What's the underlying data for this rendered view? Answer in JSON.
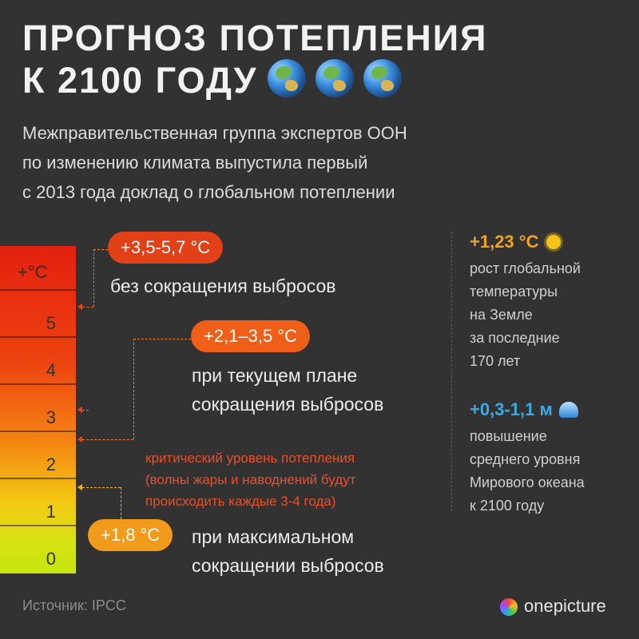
{
  "header": {
    "title_line1": "ПРОГНОЗ ПОТЕПЛЕНИЯ",
    "title_line2": "К 2100 ГОДУ",
    "subtitle_line1": "Межправительственная группа экспертов ООН",
    "subtitle_line2": "по изменению климата выпустила первый",
    "subtitle_line3": "с 2013 года доклад о глобальном потеплении"
  },
  "scale": {
    "unit": "+°C",
    "ticks": [
      "5",
      "4",
      "3",
      "2",
      "1",
      "0"
    ]
  },
  "scenarios": [
    {
      "value": "+3,5-5,7 °C",
      "label_line1": "без сокращения выбросов",
      "label_line2": "",
      "color": "#e24118"
    },
    {
      "value": "+2,1–3,5 °C",
      "label_line1": "при текущем плане",
      "label_line2": "сокращения выбросов",
      "color": "#ef5f18"
    },
    {
      "value": "+1,8 °C",
      "label_line1": "при максимальном",
      "label_line2": "сокращении выбросов",
      "color": "#f29a1a"
    }
  ],
  "critical": {
    "line1": "критический уровень потепления",
    "line2": "(волны жары и наводнений будут",
    "line3": "происходить каждые 3-4 года)"
  },
  "stats": [
    {
      "value": "+1,23 °C",
      "icon": "sun-icon",
      "color": "#f3a21b",
      "lines": [
        "рост глобальной",
        "температуры",
        "на Земле",
        "за последние",
        "170 лет"
      ]
    },
    {
      "value": "+0,3-1,1 м",
      "icon": "wave-icon",
      "color": "#3aa9ea",
      "lines": [
        "повышение",
        "среднего уровня",
        "Мирового океана",
        "к 2100 году"
      ]
    }
  ],
  "footer": {
    "source": "Источник: IPCC",
    "brand": "onepicture"
  }
}
